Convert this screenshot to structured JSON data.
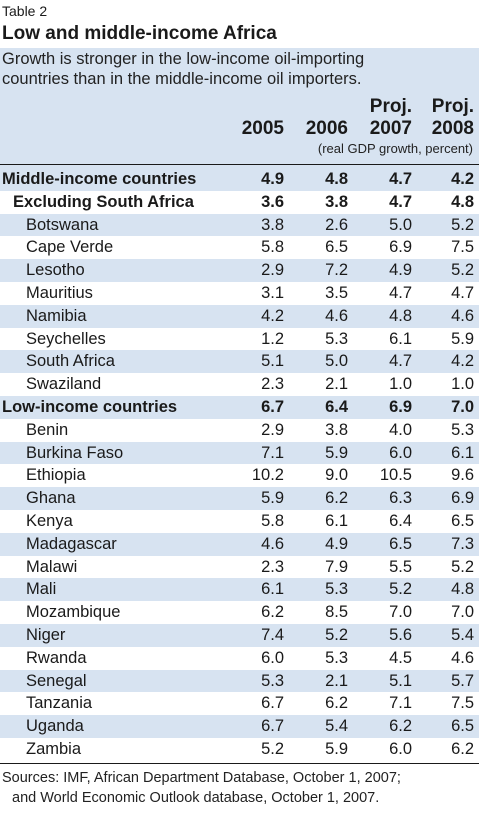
{
  "table_label": "Table 2",
  "title": "Low and middle-income Africa",
  "subtitle": {
    "line1": "Growth is stronger in the low-income oil-importing",
    "line2": "countries than in the middle-income oil importers."
  },
  "columns": [
    {
      "prefix": "",
      "year": "2005"
    },
    {
      "prefix": "",
      "year": "2006"
    },
    {
      "prefix": "Proj.",
      "year": "2007"
    },
    {
      "prefix": "Proj.",
      "year": "2008"
    }
  ],
  "unit_note": "(real GDP growth, percent)",
  "rows": [
    {
      "name": "Middle-income countries",
      "values": [
        "4.9",
        "4.8",
        "4.7",
        "4.2"
      ]
    },
    {
      "name": "Excluding South Africa",
      "values": [
        "3.6",
        "3.8",
        "4.7",
        "4.8"
      ]
    },
    {
      "name": "Botswana",
      "values": [
        "3.8",
        "2.6",
        "5.0",
        "5.2"
      ]
    },
    {
      "name": "Cape Verde",
      "values": [
        "5.8",
        "6.5",
        "6.9",
        "7.5"
      ]
    },
    {
      "name": "Lesotho",
      "values": [
        "2.9",
        "7.2",
        "4.9",
        "5.2"
      ]
    },
    {
      "name": "Mauritius",
      "values": [
        "3.1",
        "3.5",
        "4.7",
        "4.7"
      ]
    },
    {
      "name": "Namibia",
      "values": [
        "4.2",
        "4.6",
        "4.8",
        "4.6"
      ]
    },
    {
      "name": "Seychelles",
      "values": [
        "1.2",
        "5.3",
        "6.1",
        "5.9"
      ]
    },
    {
      "name": "South Africa",
      "values": [
        "5.1",
        "5.0",
        "4.7",
        "4.2"
      ]
    },
    {
      "name": "Swaziland",
      "values": [
        "2.3",
        "2.1",
        "1.0",
        "1.0"
      ]
    },
    {
      "name": "Low-income countries",
      "values": [
        "6.7",
        "6.4",
        "6.9",
        "7.0"
      ]
    },
    {
      "name": "Benin",
      "values": [
        "2.9",
        "3.8",
        "4.0",
        "5.3"
      ]
    },
    {
      "name": "Burkina Faso",
      "values": [
        "7.1",
        "5.9",
        "6.0",
        "6.1"
      ]
    },
    {
      "name": "Ethiopia",
      "values": [
        "10.2",
        "9.0",
        "10.5",
        "9.6"
      ]
    },
    {
      "name": "Ghana",
      "values": [
        "5.9",
        "6.2",
        "6.3",
        "6.9"
      ]
    },
    {
      "name": "Kenya",
      "values": [
        "5.8",
        "6.1",
        "6.4",
        "6.5"
      ]
    },
    {
      "name": "Madagascar",
      "values": [
        "4.6",
        "4.9",
        "6.5",
        "7.3"
      ]
    },
    {
      "name": "Malawi",
      "values": [
        "2.3",
        "7.9",
        "5.5",
        "5.2"
      ]
    },
    {
      "name": "Mali",
      "values": [
        "6.1",
        "5.3",
        "5.2",
        "4.8"
      ]
    },
    {
      "name": "Mozambique",
      "values": [
        "6.2",
        "8.5",
        "7.0",
        "7.0"
      ]
    },
    {
      "name": "Niger",
      "values": [
        "7.4",
        "5.2",
        "5.6",
        "5.4"
      ]
    },
    {
      "name": "Rwanda",
      "values": [
        "6.0",
        "5.3",
        "4.5",
        "4.6"
      ]
    },
    {
      "name": "Senegal",
      "values": [
        "5.3",
        "2.1",
        "5.1",
        "5.7"
      ]
    },
    {
      "name": "Tanzania",
      "values": [
        "6.7",
        "6.2",
        "7.1",
        "7.5"
      ]
    },
    {
      "name": "Uganda",
      "values": [
        "6.7",
        "5.4",
        "6.2",
        "6.5"
      ]
    },
    {
      "name": "Zambia",
      "values": [
        "5.2",
        "5.9",
        "6.0",
        "6.2"
      ]
    }
  ],
  "source": {
    "line1": "Sources: IMF, African Department Database, October 1, 2007;",
    "line2": "and World Economic Outlook database, October 1, 2007."
  },
  "colors": {
    "shade": "#d7e3f1",
    "text": "#1a1a1a"
  }
}
